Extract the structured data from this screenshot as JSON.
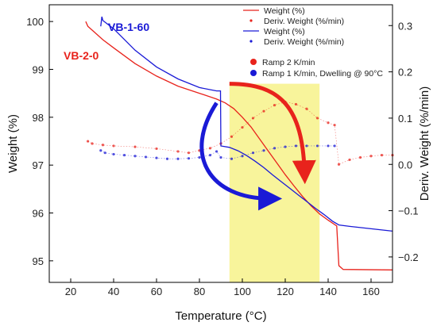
{
  "chart_data": {
    "type": "line",
    "title": "",
    "xlabel": "Temperature (°C)",
    "ylabel_left": "Weight (%)",
    "ylabel_right": "Deriv. Weight (%/min)",
    "xlim": [
      10,
      170
    ],
    "ylim_left": [
      94.55,
      100.35
    ],
    "ylim_right": [
      -0.255,
      0.345
    ],
    "x_ticks": [
      20,
      40,
      60,
      80,
      100,
      120,
      140,
      160
    ],
    "y_left_ticks": [
      95,
      96,
      97,
      98,
      99,
      100
    ],
    "y_right_ticks": [
      -0.2,
      -0.1,
      0.0,
      0.1,
      0.2,
      0.3
    ],
    "grid": false,
    "legend_position": "top-right",
    "legend": [
      {
        "label": "Weight (%)",
        "color": "#e8231c",
        "style": "line"
      },
      {
        "label": "Deriv. Weight (%/min)",
        "color": "#e8231c",
        "style": "dots"
      },
      {
        "label": "Weight (%)",
        "color": "#1a1ad6",
        "style": "line"
      },
      {
        "label": "Deriv. Weight (%/min)",
        "color": "#1a1ad6",
        "style": "dots"
      }
    ],
    "legend2": [
      {
        "label": "Ramp 2 K/min",
        "color": "#e8231c"
      },
      {
        "label": "Ramp 1 K/min, Dwelling @ 90°C",
        "color": "#1a1ad6"
      }
    ],
    "sample_labels": [
      {
        "text": "VB-2-0",
        "color": "#e8231c"
      },
      {
        "text": "VB-1-60",
        "color": "#1a1ad6"
      }
    ],
    "highlight_region": {
      "x_from": 94,
      "x_to": 136,
      "color": "#f7f28a"
    },
    "series": [
      {
        "name": "VB-2-0 Weight (%)",
        "axis": "left",
        "color": "#e8231c",
        "x": [
          27,
          28,
          30,
          35,
          40,
          50,
          60,
          70,
          80,
          88,
          92,
          96,
          100,
          104,
          108,
          112,
          116,
          120,
          124,
          128,
          132,
          136,
          140,
          144,
          145,
          147,
          170
        ],
        "y": [
          100.0,
          99.9,
          99.82,
          99.62,
          99.45,
          99.12,
          98.86,
          98.65,
          98.5,
          98.38,
          98.3,
          98.18,
          98.0,
          97.8,
          97.55,
          97.3,
          97.05,
          96.8,
          96.57,
          96.35,
          96.15,
          95.98,
          95.85,
          95.73,
          94.9,
          94.82,
          94.81
        ]
      },
      {
        "name": "VB-1-60 Weight (%)",
        "axis": "left",
        "color": "#1a1ad6",
        "x": [
          34,
          34.5,
          35,
          40,
          50,
          60,
          70,
          80,
          88,
          89.8,
          90,
          94,
          98,
          102,
          106,
          110,
          114,
          118,
          122,
          126,
          130,
          134,
          138,
          142,
          145,
          150,
          160,
          170
        ],
        "y": [
          99.9,
          100.1,
          100.02,
          99.85,
          99.4,
          99.05,
          98.8,
          98.62,
          98.55,
          98.55,
          97.4,
          97.37,
          97.3,
          97.2,
          97.08,
          96.95,
          96.8,
          96.66,
          96.52,
          96.38,
          96.24,
          96.1,
          95.97,
          95.83,
          95.75,
          95.72,
          95.67,
          95.62
        ]
      },
      {
        "name": "VB-2-0 Deriv. Weight (%/min)",
        "axis": "right",
        "color": "#e8231c",
        "x": [
          28,
          30,
          35,
          40,
          50,
          60,
          70,
          75,
          80,
          85,
          90,
          95,
          100,
          105,
          110,
          115,
          120,
          125,
          130,
          135,
          140,
          143,
          145,
          150,
          155,
          160,
          165,
          170
        ],
        "y": [
          0.05,
          0.045,
          0.042,
          0.04,
          0.038,
          0.034,
          0.028,
          0.025,
          0.03,
          0.035,
          0.045,
          0.06,
          0.08,
          0.1,
          0.115,
          0.128,
          0.135,
          0.13,
          0.12,
          0.1,
          0.09,
          0.085,
          0.0,
          0.01,
          0.015,
          0.018,
          0.02,
          0.02
        ]
      },
      {
        "name": "VB-1-60 Deriv. Weight (%/min)",
        "axis": "right",
        "color": "#1a1ad6",
        "x": [
          34,
          36,
          40,
          45,
          50,
          55,
          60,
          65,
          70,
          75,
          80,
          85,
          88,
          90,
          95,
          100,
          105,
          110,
          115,
          120,
          125,
          130,
          135,
          140,
          143
        ],
        "y": [
          0.03,
          0.025,
          0.022,
          0.02,
          0.018,
          0.016,
          0.014,
          0.012,
          0.012,
          0.013,
          0.015,
          0.02,
          0.028,
          0.015,
          0.012,
          0.018,
          0.025,
          0.03,
          0.035,
          0.038,
          0.04,
          0.04,
          0.04,
          0.04,
          0.04
        ]
      }
    ]
  }
}
